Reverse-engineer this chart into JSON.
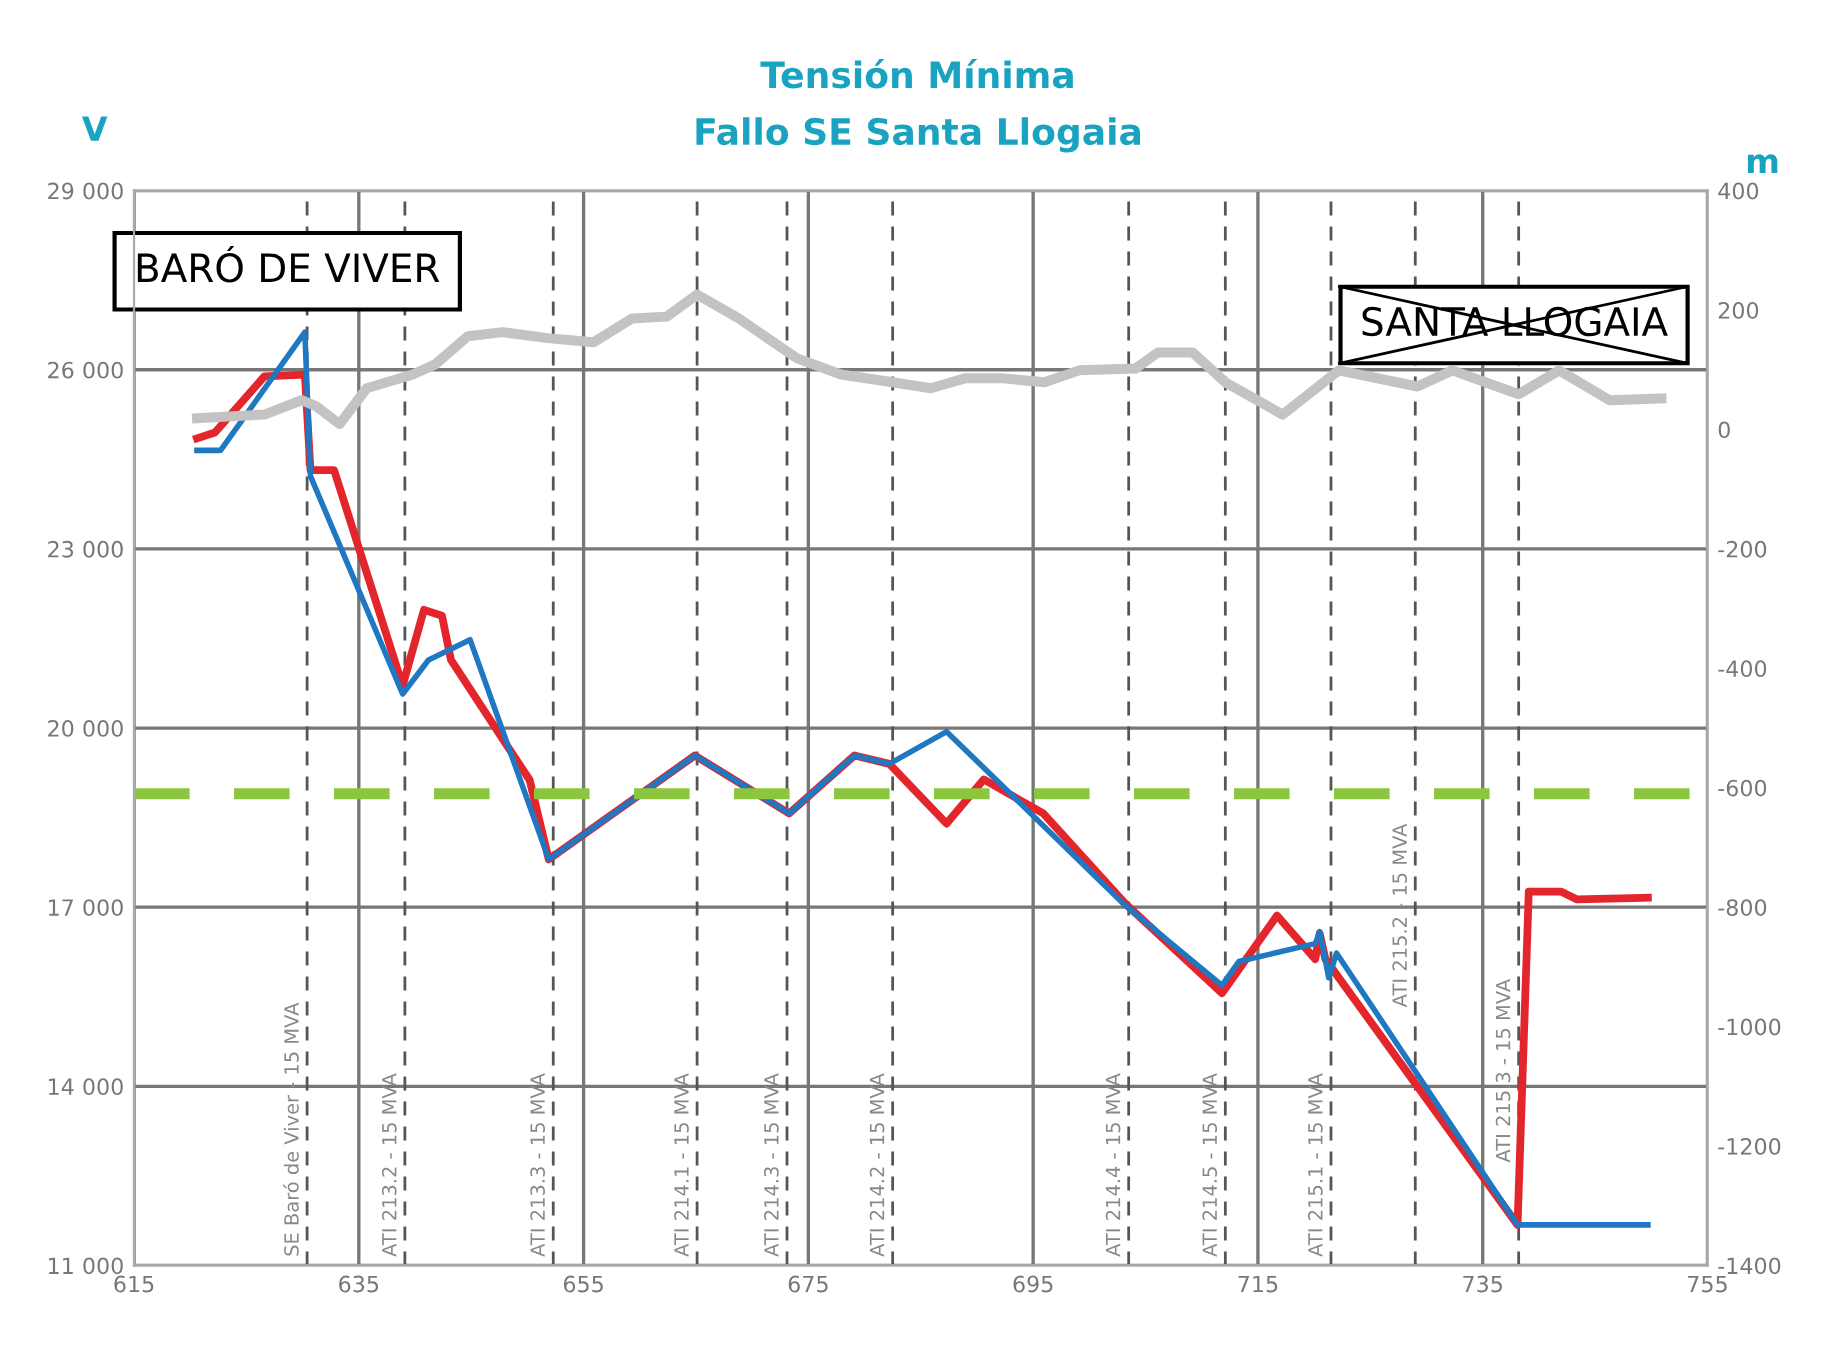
{
  "chart_data": {
    "type": "line",
    "title": "Tensión Mínima",
    "subtitle": "Fallo SE Santa Llogaia",
    "ylabel": "V",
    "y2label": "m",
    "series": [
      {
        "color": "#c3c3c3",
        "axis": "y2",
        "x": [
          620.6,
          626.6,
          629.9,
          631.2,
          633.3,
          635.7,
          639.8,
          641.8,
          644.7,
          647.8,
          651.8,
          655.9,
          659.3,
          662.4,
          665.1,
          668.8,
          674.0,
          677.9,
          682.5,
          685.9,
          689.0,
          692.1,
          696.0,
          699.1,
          704.1,
          706.1,
          709.2,
          712.1,
          717.2,
          722.2,
          729.2,
          732.3,
          738.2,
          741.8,
          746.3,
          750.9
        ],
        "values": [
          19,
          25,
          49,
          39,
          9,
          69,
          92,
          109,
          156,
          163,
          153,
          146,
          186,
          189,
          226,
          186,
          119,
          92,
          79,
          69,
          86,
          86,
          79,
          99,
          102,
          129,
          129,
          79,
          25,
          99,
          72,
          99,
          59,
          99,
          49,
          52
        ]
      },
      {
        "color": "#e3262b",
        "x": [
          620.6,
          622.2,
          626.6,
          630.2,
          630.7,
          632.8,
          638.9,
          640.8,
          642.4,
          643.2,
          650.2,
          651.9,
          664.9,
          673.3,
          679.1,
          682.2,
          687.3,
          690.6,
          695.9,
          703.2,
          711.8,
          716.7,
          720.1,
          720.5,
          721.0,
          738.1,
          739.1,
          742.0,
          743.4,
          749.7
        ],
        "values": [
          24850,
          24950,
          25890,
          25920,
          24320,
          24320,
          20710,
          21980,
          21880,
          21140,
          19130,
          17800,
          19540,
          18570,
          19540,
          19400,
          18400,
          19140,
          18570,
          17060,
          15560,
          16860,
          16130,
          16560,
          16130,
          11680,
          17260,
          17260,
          17130,
          17160
        ]
      },
      {
        "color": "#1f78c1",
        "x": [
          620.6,
          622.7,
          630.2,
          630.7,
          638.9,
          641.2,
          644.9,
          651.9,
          664.9,
          673.3,
          679.1,
          682.2,
          687.3,
          703.2,
          711.8,
          713.3,
          720.1,
          720.5,
          721.3,
          722.0,
          738.1,
          749.7
        ],
        "values": [
          24650,
          24650,
          26630,
          24220,
          20570,
          21140,
          21480,
          17800,
          19540,
          18570,
          19540,
          19400,
          19940,
          17030,
          15690,
          16090,
          16390,
          16590,
          15820,
          16230,
          11680,
          11680
        ]
      }
    ],
    "xlim": [
      615,
      755
    ],
    "xticks": [
      615,
      635,
      655,
      675,
      695,
      715,
      735,
      755
    ],
    "ylim": [
      11000,
      29000
    ],
    "yticks": [
      {
        "value": 11000,
        "label": "11 000"
      },
      {
        "value": 14000,
        "label": "14 000"
      },
      {
        "value": 17000,
        "label": "17 000"
      },
      {
        "value": 20000,
        "label": "20 000"
      },
      {
        "value": 23000,
        "label": "23 000"
      },
      {
        "value": 26000,
        "label": "26 000"
      },
      {
        "value": 29000,
        "label": "29 000"
      }
    ],
    "y2lim": [
      -1400,
      400
    ],
    "y2ticks": [
      -1400,
      -1200,
      -1000,
      -800,
      -600,
      -400,
      -200,
      0,
      200,
      400
    ],
    "grid": true,
    "legend": false,
    "marker": "none",
    "line_style": "solid",
    "ref_lines": [
      {
        "axis": "x",
        "value": 630.4,
        "label": "SE Baró de Viver - 15 MVA",
        "color": "#555555",
        "line_style": "dashed"
      },
      {
        "axis": "x",
        "value": 639.1,
        "label": "ATI 213.2 - 15 MVA",
        "color": "#555555",
        "line_style": "dashed"
      },
      {
        "axis": "x",
        "value": 652.3,
        "label": "ATI 213.3 - 15 MVA",
        "color": "#555555",
        "line_style": "dashed"
      },
      {
        "axis": "x",
        "value": 665.1,
        "label": "ATI 214.1 - 15 MVA",
        "color": "#555555",
        "line_style": "dashed"
      },
      {
        "axis": "x",
        "value": 673.1,
        "label": "ATI 214.3 - 15 MVA",
        "color": "#555555",
        "line_style": "dashed"
      },
      {
        "axis": "x",
        "value": 682.5,
        "label": "ATI 214.2 - 15 MVA",
        "color": "#555555",
        "line_style": "dashed"
      },
      {
        "axis": "x",
        "value": 703.5,
        "label": "ATI 214.4 - 15 MVA",
        "color": "#555555",
        "line_style": "dashed"
      },
      {
        "axis": "x",
        "value": 712.1,
        "label": "ATI 214.5 - 15 MVA",
        "color": "#555555",
        "line_style": "dashed"
      },
      {
        "axis": "x",
        "value": 721.5,
        "label": "ATI 215.1 - 15 MVA",
        "color": "#555555",
        "line_style": "dashed"
      },
      {
        "axis": "x",
        "value": 729.0,
        "label": "ATI 215.2 - 15 MVA",
        "color": "#555555",
        "line_style": "dashed"
      },
      {
        "axis": "x",
        "value": 738.2,
        "label": "ATI 215.3 - 15 MVA",
        "color": "#555555",
        "line_style": "dashed"
      },
      {
        "axis": "y2",
        "value": -610,
        "color": "#8cc63f",
        "line_style": "dashed"
      }
    ],
    "annotations": [
      "BARÓ DE VIVER",
      "SANTA LLOGAIA"
    ]
  }
}
